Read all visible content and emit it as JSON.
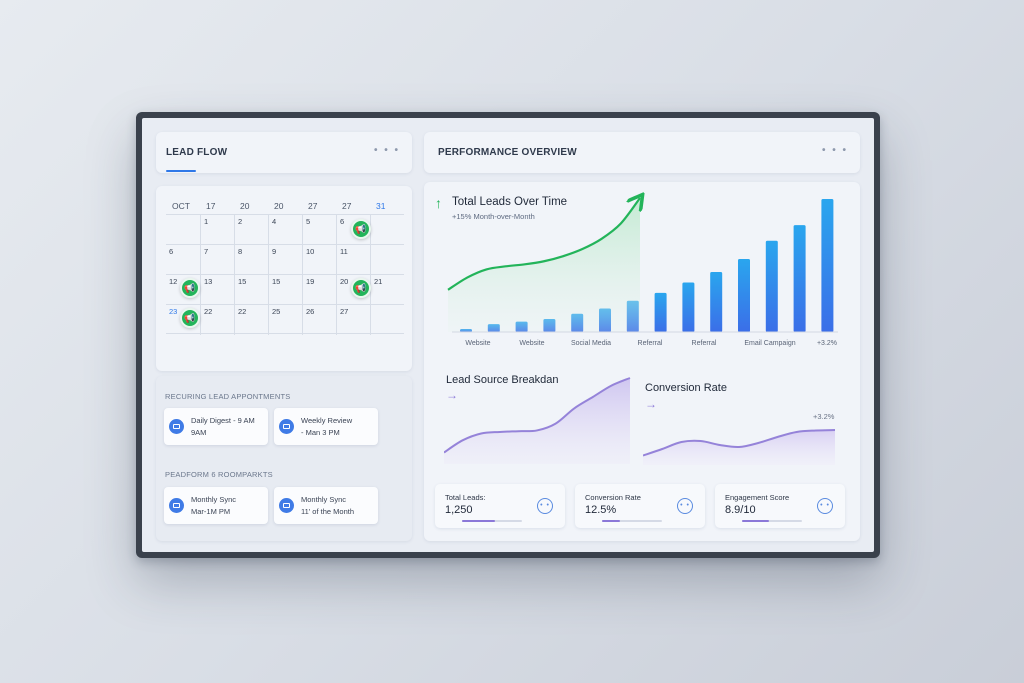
{
  "lead_flow": {
    "title": "LEAD FLOW",
    "menu": "• • •",
    "calendar": {
      "headers": [
        "OCT",
        "17",
        "20",
        "20",
        "27",
        "27",
        "31"
      ],
      "rows": [
        [
          "",
          "1",
          "2",
          "4",
          "5",
          "6",
          ""
        ],
        [
          "6",
          "7",
          "8",
          "9",
          "10",
          "11",
          ""
        ],
        [
          "12",
          "13",
          "15",
          "15",
          "19",
          "20",
          "21"
        ],
        [
          "23",
          "22",
          "22",
          "25",
          "26",
          "27",
          ""
        ]
      ]
    },
    "recurring": {
      "label": "RECURING LEAD APPONTMENTS",
      "items": [
        {
          "line1": "Daily Digest - 9 AM",
          "line2": "9AM"
        },
        {
          "line1": "Weekly Review",
          "line2": "- Man 3 PM"
        }
      ]
    },
    "platform": {
      "label": "PEADFORM 6 ROOMPARKTS",
      "items": [
        {
          "line1": "Monthly Sync",
          "line2": "Mar-1M PM"
        },
        {
          "line1": "Monthly Sync",
          "line2": "11' of the Month"
        }
      ]
    }
  },
  "performance": {
    "title": "PERFORMANCE OVERVIEW",
    "menu": "• • •",
    "total_leads": {
      "title": "Total Leads Over Time",
      "subtitle": "+15% Month-over-Month",
      "arrow": "↑",
      "x_labels": [
        "Website",
        "Website",
        "Social Media",
        "Referral",
        "Referral",
        "Email Campaign",
        "+3.2%"
      ]
    },
    "lead_source": {
      "title": "Lead Source Breakdan",
      "arrow": "→"
    },
    "conversion": {
      "title": "Conversion Rate",
      "arrow": "→",
      "annotation": "+3.2%"
    },
    "metrics": [
      {
        "label": "Total Leads:",
        "value": "1,250",
        "fill": 0.55,
        "button": "• •"
      },
      {
        "label": "Conversion Rate",
        "value": "12.5%",
        "fill": 0.3,
        "button": "• •"
      },
      {
        "label": "Engagement Score",
        "value": "8.9/10",
        "fill": 0.45,
        "button": "• •"
      }
    ]
  },
  "colors": {
    "accent_blue": "#2f78e8",
    "green": "#23b45a",
    "purple": "#8b78d8"
  },
  "chart_data": [
    {
      "type": "bar",
      "values": [
        1,
        3,
        4,
        5,
        7,
        9,
        12,
        15,
        19,
        23,
        28,
        35,
        41,
        51
      ],
      "title": "Total Leads Over Time"
    },
    {
      "type": "line",
      "values": [
        10,
        22,
        30,
        33,
        35,
        38,
        43,
        50,
        60,
        75,
        100
      ]
    },
    {
      "type": "area",
      "values": [
        2,
        18,
        27,
        29,
        30,
        31,
        40,
        60,
        75,
        90,
        100
      ],
      "title": "Lead Source Breakdan"
    },
    {
      "type": "area",
      "values": [
        5,
        18,
        32,
        34,
        26,
        22,
        30,
        42,
        52,
        55,
        56
      ],
      "title": "Conversion Rate"
    }
  ]
}
